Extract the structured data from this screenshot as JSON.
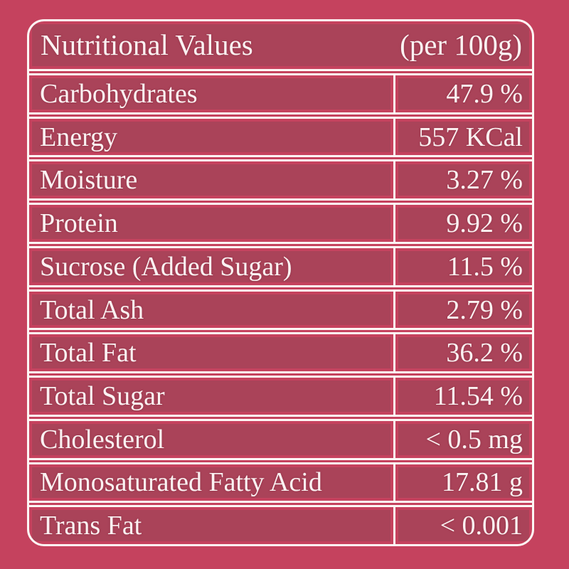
{
  "colors": {
    "bg": "#c5425e",
    "line": "#fdf7f5",
    "text": "#fbf2f2",
    "band": "rgba(82,72,74,0.24)"
  },
  "table": {
    "title": "Nutritional Values",
    "per_note": "(per 100g)",
    "rows": [
      {
        "label": "Carbohydrates",
        "value": "47.9 %"
      },
      {
        "label": "Energy",
        "value": "557 KCal"
      },
      {
        "label": "Moisture",
        "value": "3.27 %"
      },
      {
        "label": "Protein",
        "value": "9.92 %"
      },
      {
        "label": "Sucrose (Added Sugar)",
        "value": "11.5 %"
      },
      {
        "label": "Total Ash",
        "value": "2.79 %"
      },
      {
        "label": "Total Fat",
        "value": "36.2 %"
      },
      {
        "label": "Total Sugar",
        "value": "11.54 %"
      },
      {
        "label": "Cholesterol",
        "value": "< 0.5 mg"
      },
      {
        "label": "Monosaturated Fatty Acid",
        "value": "17.81 g"
      },
      {
        "label": "Trans Fat",
        "value": "< 0.001"
      }
    ]
  }
}
